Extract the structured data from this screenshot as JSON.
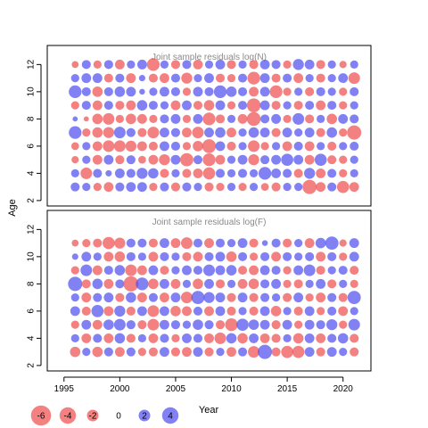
{
  "chart_data": {
    "type": "scatter",
    "subtype": "bubble residual plot",
    "shared_x_label": "Year",
    "shared_y_label": "Age",
    "x_ticks": [
      1995,
      2000,
      2005,
      2010,
      2015,
      2020
    ],
    "xlim": [
      1993.5,
      2022.5
    ],
    "positive_color": "#5050f0",
    "negative_color": "#f05050",
    "legend": {
      "values": [
        -6,
        -4,
        -2,
        0,
        2,
        4
      ],
      "labels": [
        "-6",
        "-4",
        "-2",
        "0",
        "2",
        "4"
      ],
      "placement": "bottom-left"
    },
    "panels": [
      {
        "title": "Joint sample residuals log(N)",
        "y_ticks": [
          2,
          4,
          6,
          8,
          10,
          12
        ],
        "ylim": [
          1.6,
          13.4
        ],
        "years": [
          1996,
          1997,
          1998,
          1999,
          2000,
          2001,
          2002,
          2003,
          2004,
          2005,
          2006,
          2007,
          2008,
          2009,
          2010,
          2011,
          2012,
          2013,
          2014,
          2015,
          2016,
          2017,
          2018,
          2019,
          2020,
          2021
        ],
        "ages": [
          3,
          4,
          5,
          6,
          7,
          8,
          9,
          10,
          11,
          12
        ],
        "residuals": [
          [
            1.2,
            1.0,
            -1.0,
            -1.4,
            1.2,
            1.4,
            1.4,
            -1.0,
            1.2,
            -1.2,
            1.2,
            1.0,
            -1.2,
            -1.0,
            1.0,
            -1.0,
            1.0,
            -0.9,
            -1.2,
            1.0,
            1.0,
            -3.0,
            -1.4,
            1.2,
            -2.2,
            -1.4
          ],
          [
            1.0,
            -2.0,
            1.2,
            0.6,
            1.4,
            1.2,
            1.8,
            1.6,
            -1.2,
            1.0,
            -1.2,
            -1.4,
            -2.2,
            1.2,
            1.0,
            1.2,
            1.0,
            2.4,
            1.4,
            1.2,
            -1.2,
            1.8,
            -1.4,
            1.2,
            -1.0,
            1.0
          ],
          [
            -0.8,
            1.0,
            -1.4,
            1.4,
            -1.2,
            1.2,
            -0.9,
            -1.4,
            -1.8,
            1.4,
            -2.6,
            1.2,
            -2.4,
            -1.4,
            1.0,
            1.4,
            -1.8,
            1.2,
            1.4,
            2.2,
            1.4,
            -1.4,
            2.2,
            -1.2,
            -1.0,
            1.0
          ],
          [
            -0.9,
            1.0,
            -1.4,
            -2.0,
            -2.0,
            -1.8,
            -1.4,
            -1.2,
            1.4,
            1.2,
            -1.0,
            -1.6,
            -2.8,
            1.4,
            -1.2,
            1.0,
            -2.0,
            -1.0,
            1.0,
            -1.4,
            1.2,
            -1.4,
            1.0,
            -1.2,
            1.0,
            1.2
          ],
          [
            2.4,
            -1.0,
            -1.6,
            -1.8,
            2.0,
            1.2,
            -1.2,
            -2.0,
            1.4,
            1.2,
            -1.4,
            -2.0,
            1.4,
            1.6,
            -1.4,
            1.0,
            1.6,
            1.4,
            -1.2,
            1.4,
            1.0,
            1.4,
            -1.2,
            1.6,
            -1.0,
            -3.0
          ],
          [
            0.4,
            -0.4,
            -1.6,
            -2.0,
            -1.0,
            -1.6,
            -1.4,
            -1.0,
            1.2,
            1.4,
            -1.0,
            1.4,
            -2.4,
            -1.2,
            1.0,
            -1.4,
            -2.8,
            1.2,
            1.4,
            -1.0,
            2.0,
            -1.2,
            1.0,
            -1.6,
            1.4,
            1.2
          ],
          [
            -1.0,
            1.2,
            -1.4,
            1.2,
            -1.2,
            -1.4,
            1.6,
            1.2,
            1.0,
            -1.4,
            1.4,
            -1.2,
            -1.6,
            1.4,
            -1.0,
            1.2,
            -2.8,
            1.4,
            -1.2,
            1.0,
            -1.2,
            1.2,
            -1.4,
            1.2,
            -1.0,
            1.0
          ],
          [
            2.4,
            1.2,
            -1.6,
            1.2,
            1.6,
            1.4,
            0.5,
            1.0,
            1.4,
            1.2,
            -1.0,
            1.4,
            1.2,
            2.4,
            1.6,
            1.2,
            -1.4,
            1.4,
            -2.4,
            -1.0,
            1.0,
            -1.2,
            1.2,
            1.0,
            -1.0,
            1.2
          ],
          [
            1.0,
            1.4,
            1.4,
            -1.2,
            1.2,
            -1.4,
            0.6,
            -1.2,
            -1.4,
            1.2,
            -1.8,
            1.0,
            1.4,
            -1.2,
            -1.0,
            1.2,
            -2.4,
            1.4,
            -1.2,
            1.2,
            -1.4,
            1.0,
            -1.2,
            1.0,
            1.4,
            -2.0
          ],
          [
            -0.7,
            1.2,
            -1.0,
            1.2,
            -1.4,
            1.0,
            1.4,
            -2.4,
            1.0,
            -1.2,
            1.2,
            -1.4,
            1.0,
            1.4,
            -1.2,
            1.0,
            -1.2,
            1.4,
            1.2,
            -1.0,
            1.8,
            1.4,
            -1.2,
            1.0,
            -0.8,
            1.0
          ]
        ]
      },
      {
        "title": "Joint sample residuals log(F)",
        "y_ticks": [
          2,
          4,
          6,
          8,
          10,
          12
        ],
        "ylim": [
          1.6,
          13.4
        ],
        "years": [
          1996,
          1997,
          1998,
          1999,
          2000,
          2001,
          2002,
          2003,
          2004,
          2005,
          2006,
          2007,
          2008,
          2009,
          2010,
          2011,
          2012,
          2013,
          2014,
          2015,
          2016,
          2017,
          2018,
          2019,
          2020,
          2021
        ],
        "ages": [
          3,
          4,
          5,
          6,
          7,
          8,
          9,
          10,
          11
        ],
        "residuals": [
          [
            -1.6,
            1.0,
            -1.6,
            1.2,
            -1.4,
            1.2,
            -1.0,
            -1.2,
            1.4,
            -1.2,
            -1.4,
            1.4,
            -1.2,
            1.0,
            -1.4,
            1.2,
            -2.0,
            3.0,
            -1.2,
            -2.2,
            -2.2,
            1.4,
            -1.2,
            1.4,
            1.0,
            -1.2
          ],
          [
            1.0,
            -1.4,
            1.2,
            -1.4,
            1.6,
            -1.2,
            1.0,
            -1.4,
            1.2,
            -1.0,
            1.4,
            1.2,
            -1.4,
            -2.0,
            1.6,
            -1.6,
            1.4,
            -1.4,
            -1.2,
            1.0,
            -1.6,
            1.4,
            -1.4,
            1.2,
            1.6,
            -1.2
          ],
          [
            -1.0,
            1.4,
            -1.4,
            1.6,
            2.0,
            1.2,
            -1.2,
            -2.0,
            1.4,
            1.2,
            1.0,
            1.6,
            1.2,
            -1.2,
            -2.4,
            2.2,
            1.6,
            1.4,
            -1.2,
            1.4,
            -1.0,
            1.4,
            1.2,
            1.8,
            -1.0,
            2.0
          ],
          [
            1.4,
            -1.2,
            2.2,
            -1.4,
            1.8,
            -1.2,
            1.4,
            -2.0,
            1.4,
            -1.6,
            -1.4,
            1.2,
            -1.4,
            1.4,
            -1.2,
            1.0,
            -1.2,
            1.4,
            -1.6,
            1.0,
            -1.2,
            1.4,
            -1.0,
            1.2,
            -1.4,
            1.0
          ],
          [
            1.0,
            -1.4,
            1.2,
            1.4,
            -1.2,
            1.6,
            -1.4,
            1.2,
            -1.4,
            1.4,
            -2.0,
            2.6,
            1.8,
            1.4,
            -1.2,
            1.4,
            -1.2,
            1.2,
            1.0,
            -1.2,
            1.4,
            -1.0,
            -1.4,
            1.2,
            -1.2,
            2.6
          ],
          [
            3.0,
            -1.2,
            1.6,
            -1.4,
            1.2,
            -3.4,
            2.4,
            -1.6,
            1.4,
            -1.4,
            1.0,
            -1.6,
            1.4,
            -1.2,
            1.0,
            -1.4,
            -1.6,
            1.2,
            1.4,
            -1.0,
            -1.2,
            1.0,
            1.4,
            -1.2,
            1.0,
            -1.0
          ],
          [
            -1.0,
            2.0,
            -1.4,
            1.2,
            1.6,
            -2.0,
            -1.4,
            1.4,
            -1.2,
            1.0,
            1.4,
            1.2,
            2.0,
            1.4,
            1.6,
            -1.2,
            -1.4,
            1.4,
            1.2,
            -1.0,
            1.4,
            2.0,
            -1.2,
            1.0,
            1.2,
            -1.2
          ],
          [
            0.6,
            1.4,
            1.0,
            -1.4,
            -1.6,
            1.2,
            1.0,
            -1.4,
            1.2,
            1.0,
            -1.2,
            -1.4,
            1.2,
            1.4,
            -1.6,
            1.2,
            -1.0,
            1.2,
            -1.4,
            1.2,
            1.0,
            1.2,
            -1.4,
            1.2,
            -1.0,
            1.4
          ],
          [
            -0.7,
            -1.0,
            -1.2,
            -2.2,
            -1.8,
            1.2,
            1.2,
            -1.2,
            1.4,
            -1.4,
            -2.0,
            1.2,
            -1.4,
            1.2,
            1.0,
            1.4,
            -1.2,
            0.5,
            1.2,
            -1.2,
            1.0,
            -1.4,
            1.6,
            2.6,
            -0.8,
            1.4
          ]
        ]
      }
    ]
  }
}
